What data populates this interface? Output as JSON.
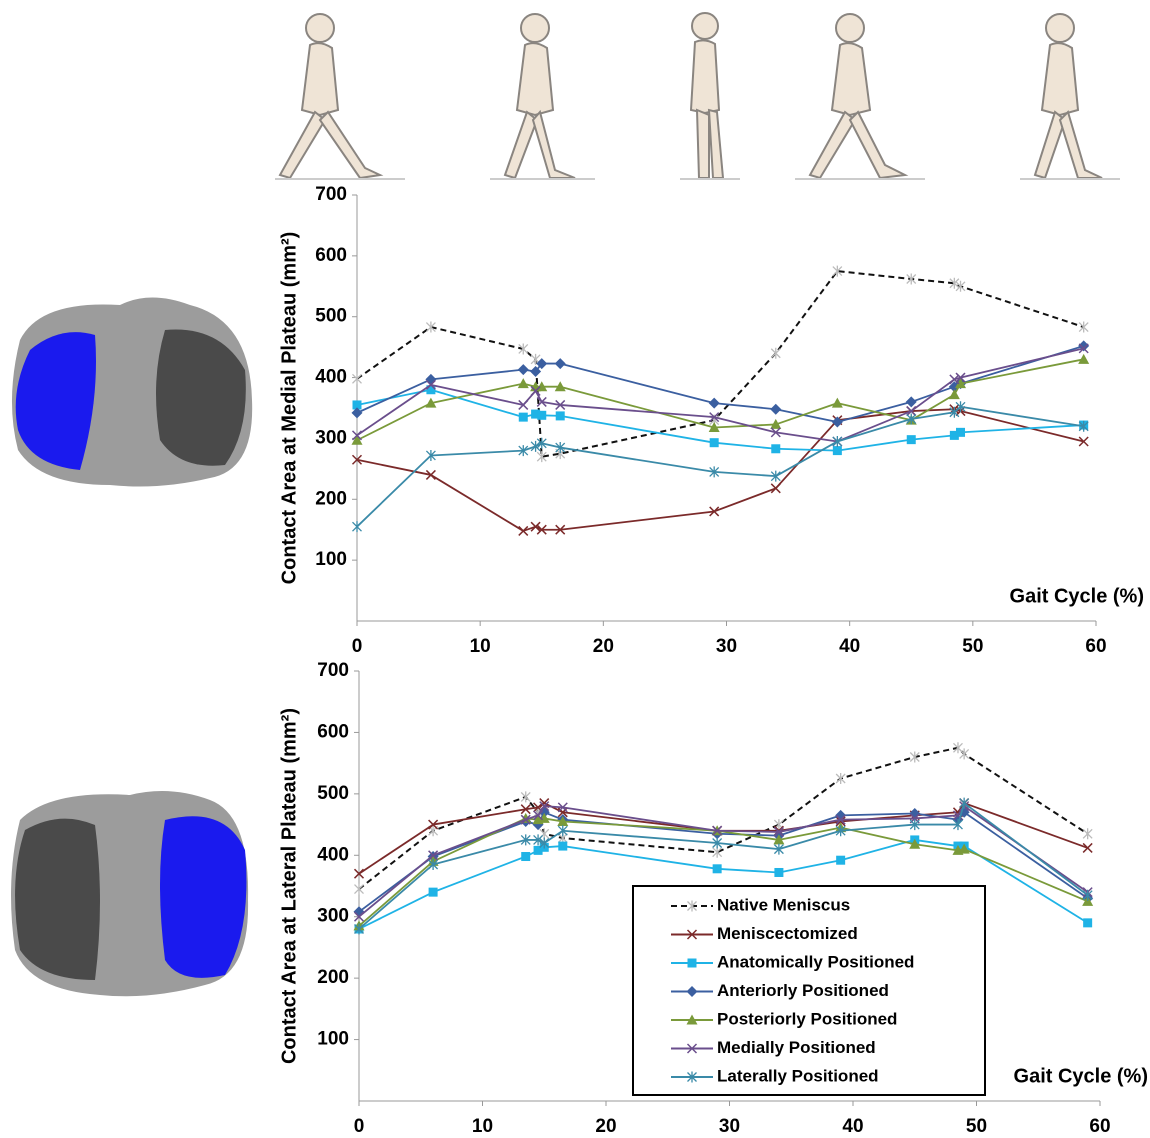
{
  "chart_data": [
    {
      "type": "line",
      "y_label": "Contact Area at Medial Plateau (mm²)",
      "x_label": "Gait Cycle (%)",
      "x": [
        0,
        6,
        13.5,
        14.5,
        15,
        16.5,
        29,
        34,
        39,
        45,
        48.5,
        49,
        59
      ],
      "xlim": [
        0,
        60
      ],
      "xticks": [
        0,
        10,
        20,
        30,
        40,
        50,
        60
      ],
      "ylim": [
        0,
        700
      ],
      "yticks": [
        100,
        200,
        300,
        400,
        500,
        600,
        700
      ],
      "legend": false,
      "series": [
        {
          "color": "#111111",
          "dash": true,
          "marker": "star",
          "values": [
            398,
            483,
            447,
            430,
            270,
            275,
            330,
            440,
            575,
            562,
            555,
            550,
            483
          ]
        },
        {
          "color": "#7b2a2a",
          "marker": "x",
          "values": [
            265,
            240,
            148,
            155,
            150,
            150,
            180,
            218,
            330,
            345,
            348,
            345,
            295
          ]
        },
        {
          "color": "#1fb3e6",
          "marker": "square",
          "values": [
            355,
            380,
            335,
            340,
            338,
            337,
            293,
            283,
            280,
            298,
            305,
            310,
            322
          ]
        },
        {
          "color": "#3b5fa0",
          "marker": "diamond",
          "values": [
            342,
            397,
            413,
            410,
            423,
            423,
            358,
            348,
            327,
            360,
            385,
            390,
            452
          ]
        },
        {
          "color": "#7a9a3a",
          "marker": "triangle",
          "values": [
            297,
            358,
            390,
            385,
            385,
            385,
            318,
            323,
            358,
            330,
            372,
            390,
            430
          ]
        },
        {
          "color": "#6a4e8c",
          "marker": "x",
          "values": [
            305,
            388,
            355,
            378,
            360,
            355,
            335,
            310,
            295,
            345,
            397,
            400,
            448
          ]
        },
        {
          "color": "#3a8aa8",
          "marker": "star",
          "values": [
            155,
            272,
            280,
            287,
            292,
            285,
            245,
            238,
            295,
            332,
            343,
            352,
            320
          ]
        }
      ]
    },
    {
      "type": "line",
      "y_label": "Contact Area at Lateral Plateau (mm²)",
      "x_label": "Gait Cycle (%)",
      "x": [
        0,
        6,
        13.5,
        14.5,
        15,
        16.5,
        29,
        34,
        39,
        45,
        48.5,
        49,
        59
      ],
      "xlim": [
        0,
        60
      ],
      "xticks": [
        0,
        10,
        20,
        30,
        40,
        50,
        60
      ],
      "ylim": [
        0,
        700
      ],
      "yticks": [
        100,
        200,
        300,
        400,
        500,
        600,
        700
      ],
      "legend": true,
      "series": [
        {
          "name": "Native Meniscus",
          "color": "#111111",
          "dash": true,
          "marker": "star",
          "values": [
            345,
            440,
            495,
            470,
            435,
            428,
            405,
            450,
            525,
            560,
            575,
            565,
            435
          ]
        },
        {
          "name": "Meniscectomized",
          "color": "#7b2a2a",
          "marker": "x",
          "values": [
            370,
            450,
            475,
            478,
            485,
            470,
            440,
            440,
            455,
            465,
            470,
            485,
            412
          ]
        },
        {
          "name": "Anatomically Positioned",
          "color": "#1fb3e6",
          "marker": "square",
          "values": [
            280,
            340,
            398,
            408,
            413,
            415,
            378,
            372,
            392,
            425,
            415,
            415,
            290
          ]
        },
        {
          "name": "Anteriorly Positioned",
          "color": "#3b5fa0",
          "marker": "diamond",
          "values": [
            308,
            398,
            455,
            450,
            470,
            458,
            435,
            432,
            465,
            468,
            458,
            470,
            330
          ]
        },
        {
          "name": "Posteriorly Positioned",
          "color": "#7a9a3a",
          "marker": "triangle",
          "values": [
            285,
            390,
            460,
            458,
            460,
            455,
            440,
            425,
            445,
            418,
            408,
            410,
            325
          ]
        },
        {
          "name": "Medially Positioned",
          "color": "#6a4e8c",
          "marker": "x",
          "values": [
            300,
            400,
            458,
            465,
            480,
            478,
            440,
            438,
            458,
            460,
            465,
            480,
            340
          ]
        },
        {
          "name": "Laterally Positioned",
          "color": "#3a8aa8",
          "marker": "star",
          "values": [
            280,
            385,
            425,
            425,
            420,
            440,
            420,
            410,
            440,
            450,
            450,
            485,
            335
          ]
        }
      ]
    }
  ]
}
